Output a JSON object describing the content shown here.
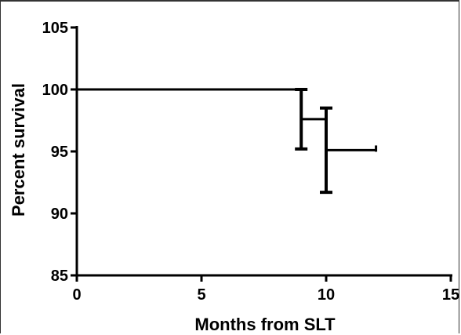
{
  "chart_data": {
    "type": "line",
    "subtype": "kaplan-meier-survival",
    "title": "",
    "xlabel": "Months from SLT",
    "ylabel": "Percent survival",
    "xlim": [
      0,
      15
    ],
    "ylim": [
      85,
      105
    ],
    "x_ticks": [
      0,
      5,
      10,
      15
    ],
    "y_ticks": [
      85,
      90,
      95,
      100,
      105
    ],
    "x_tick_labels": [
      "0",
      "5",
      "10",
      "15"
    ],
    "y_tick_labels": [
      "85",
      "90",
      "95",
      "100",
      "105"
    ],
    "grid": false,
    "legend": "none",
    "series": [
      {
        "steps": [
          {
            "x": 0,
            "y": 100
          },
          {
            "x": 9,
            "y": 100
          },
          {
            "x": 9,
            "y": 97.6
          },
          {
            "x": 10,
            "y": 97.6
          },
          {
            "x": 10,
            "y": 95.1
          },
          {
            "x": 12,
            "y": 95.1
          }
        ],
        "censored": [
          {
            "x": 12,
            "y": 95.1
          }
        ],
        "error_bars": [
          {
            "x": 9,
            "low": 95.2,
            "high": 100
          },
          {
            "x": 10,
            "low": 91.7,
            "high": 98.5
          }
        ]
      }
    ],
    "colors": {
      "line": "#000000",
      "frame": "#333333"
    }
  }
}
